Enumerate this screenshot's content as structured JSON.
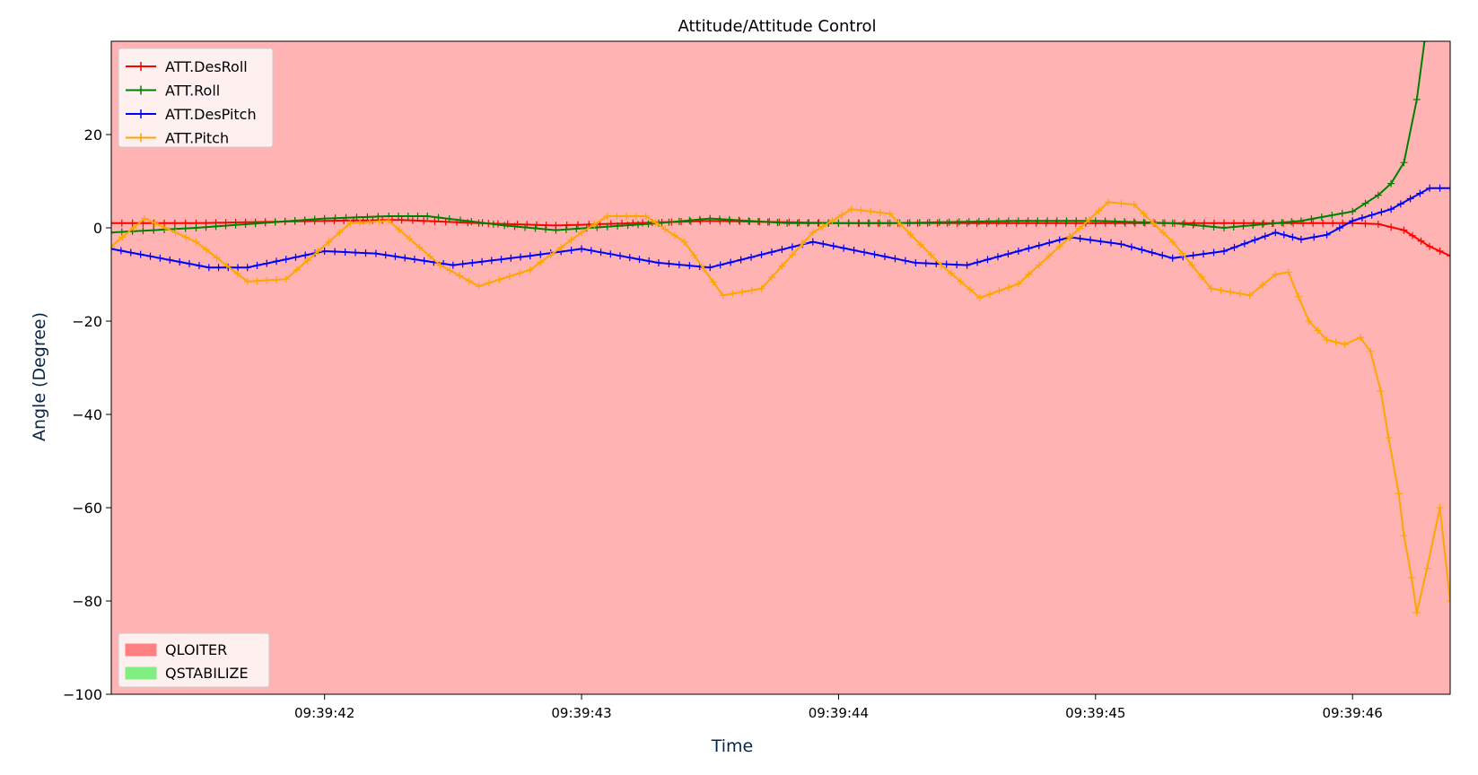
{
  "chart_data": {
    "type": "line",
    "title": "Attitude/Attitude Control",
    "xlabel": "Time",
    "ylabel": "Angle (Degree)",
    "x_range_seconds": [
      "09:39:41.17",
      "09:39:46.38"
    ],
    "ylim": [
      -100,
      40
    ],
    "yticks": [
      20,
      0,
      -20,
      -40,
      -60,
      -80,
      -100
    ],
    "ytick_labels": [
      "20",
      "0",
      "−20",
      "−40",
      "−60",
      "−80",
      "−100"
    ],
    "xticks": [
      "09:39:42",
      "09:39:43",
      "09:39:44",
      "09:39:45",
      "09:39:46"
    ],
    "grid": false,
    "legend_position": "upper-left",
    "mode_legend_position": "lower-left",
    "background_mode": {
      "name": "QLOITER",
      "color": "#ff8080"
    },
    "mode_legend": [
      {
        "name": "QLOITER",
        "color": "#ff8080"
      },
      {
        "name": "QSTABILIZE",
        "color": "#80ee80"
      }
    ],
    "series": [
      {
        "name": "ATT.DesRoll",
        "color": "#ff0000",
        "points": [
          [
            "09:39:41.17",
            1.0
          ],
          [
            "09:39:41.50",
            1.0
          ],
          [
            "09:39:42.00",
            1.5
          ],
          [
            "09:39:42.30",
            1.7
          ],
          [
            "09:39:42.60",
            1.0
          ],
          [
            "09:39:42.90",
            0.5
          ],
          [
            "09:39:43.20",
            1.0
          ],
          [
            "09:39:43.50",
            1.5
          ],
          [
            "09:39:44.00",
            1.0
          ],
          [
            "09:39:44.50",
            1.0
          ],
          [
            "09:39:45.00",
            1.0
          ],
          [
            "09:39:45.50",
            1.0
          ],
          [
            "09:39:46.00",
            1.0
          ],
          [
            "09:39:46.10",
            0.8
          ],
          [
            "09:39:46.20",
            -0.5
          ],
          [
            "09:39:46.30",
            -4.0
          ],
          [
            "09:39:46.38",
            -6.0
          ]
        ]
      },
      {
        "name": "ATT.Roll",
        "color": "#008000",
        "points": [
          [
            "09:39:41.17",
            -1.0
          ],
          [
            "09:39:41.50",
            0.0
          ],
          [
            "09:39:42.00",
            2.0
          ],
          [
            "09:39:42.25",
            2.5
          ],
          [
            "09:39:42.40",
            2.5
          ],
          [
            "09:39:42.70",
            0.5
          ],
          [
            "09:39:42.90",
            -0.5
          ],
          [
            "09:39:43.30",
            1.0
          ],
          [
            "09:39:43.50",
            2.0
          ],
          [
            "09:39:43.80",
            1.0
          ],
          [
            "09:39:44.20",
            1.0
          ],
          [
            "09:39:44.70",
            1.5
          ],
          [
            "09:39:45.00",
            1.5
          ],
          [
            "09:39:45.30",
            1.0
          ],
          [
            "09:39:45.50",
            0.0
          ],
          [
            "09:39:45.80",
            1.5
          ],
          [
            "09:39:46.00",
            3.5
          ],
          [
            "09:39:46.10",
            7.0
          ],
          [
            "09:39:46.15",
            9.5
          ],
          [
            "09:39:46.20",
            14.0
          ],
          [
            "09:39:46.25",
            27.5
          ],
          [
            "09:39:46.28",
            40.0
          ]
        ]
      },
      {
        "name": "ATT.DesPitch",
        "color": "#0000ff",
        "points": [
          [
            "09:39:41.17",
            -4.5
          ],
          [
            "09:39:41.55",
            -8.5
          ],
          [
            "09:39:41.70",
            -8.5
          ],
          [
            "09:39:42.00",
            -5.0
          ],
          [
            "09:39:42.20",
            -5.5
          ],
          [
            "09:39:42.50",
            -8.0
          ],
          [
            "09:39:42.80",
            -6.0
          ],
          [
            "09:39:43.00",
            -4.5
          ],
          [
            "09:39:43.30",
            -7.5
          ],
          [
            "09:39:43.50",
            -8.5
          ],
          [
            "09:39:43.90",
            -3.0
          ],
          [
            "09:39:44.30",
            -7.5
          ],
          [
            "09:39:44.50",
            -8.0
          ],
          [
            "09:39:44.90",
            -2.0
          ],
          [
            "09:39:45.10",
            -3.5
          ],
          [
            "09:39:45.30",
            -6.5
          ],
          [
            "09:39:45.50",
            -5.0
          ],
          [
            "09:39:45.70",
            -1.0
          ],
          [
            "09:39:45.80",
            -2.5
          ],
          [
            "09:39:45.90",
            -1.5
          ],
          [
            "09:39:46.00",
            1.5
          ],
          [
            "09:39:46.15",
            4.0
          ],
          [
            "09:39:46.30",
            8.5
          ],
          [
            "09:39:46.38",
            8.5
          ]
        ]
      },
      {
        "name": "ATT.Pitch",
        "color": "#ffa500",
        "points": [
          [
            "09:39:41.17",
            -4.0
          ],
          [
            "09:39:41.30",
            2.0
          ],
          [
            "09:39:41.50",
            -3.0
          ],
          [
            "09:39:41.70",
            -11.5
          ],
          [
            "09:39:41.85",
            -11.0
          ],
          [
            "09:39:42.10",
            1.0
          ],
          [
            "09:39:42.25",
            1.5
          ],
          [
            "09:39:42.45",
            -8.0
          ],
          [
            "09:39:42.60",
            -12.5
          ],
          [
            "09:39:42.80",
            -9.0
          ],
          [
            "09:39:43.00",
            -1.0
          ],
          [
            "09:39:43.10",
            2.5
          ],
          [
            "09:39:43.25",
            2.5
          ],
          [
            "09:39:43.40",
            -3.0
          ],
          [
            "09:39:43.55",
            -14.5
          ],
          [
            "09:39:43.70",
            -13.0
          ],
          [
            "09:39:43.90",
            -1.0
          ],
          [
            "09:39:44.05",
            4.0
          ],
          [
            "09:39:44.20",
            3.0
          ],
          [
            "09:39:44.40",
            -8.0
          ],
          [
            "09:39:44.55",
            -15.0
          ],
          [
            "09:39:44.70",
            -12.0
          ],
          [
            "09:39:44.90",
            -2.0
          ],
          [
            "09:39:45.05",
            5.5
          ],
          [
            "09:39:45.15",
            5.0
          ],
          [
            "09:39:45.30",
            -3.0
          ],
          [
            "09:39:45.45",
            -13.0
          ],
          [
            "09:39:45.60",
            -14.5
          ],
          [
            "09:39:45.70",
            -10.0
          ],
          [
            "09:39:45.75",
            -9.5
          ],
          [
            "09:39:45.83",
            -20.0
          ],
          [
            "09:39:45.90",
            -24.0
          ],
          [
            "09:39:45.97",
            -25.0
          ],
          [
            "09:39:46.03",
            -23.5
          ],
          [
            "09:39:46.07",
            -26.5
          ],
          [
            "09:39:46.11",
            -35.0
          ],
          [
            "09:39:46.14",
            -45.0
          ],
          [
            "09:39:46.18",
            -57.0
          ],
          [
            "09:39:46.20",
            -66.0
          ],
          [
            "09:39:46.23",
            -75.0
          ],
          [
            "09:39:46.25",
            -82.5
          ],
          [
            "09:39:46.29",
            -73.0
          ],
          [
            "09:39:46.34",
            -60.0
          ],
          [
            "09:39:46.38",
            -80.0
          ]
        ]
      }
    ]
  }
}
